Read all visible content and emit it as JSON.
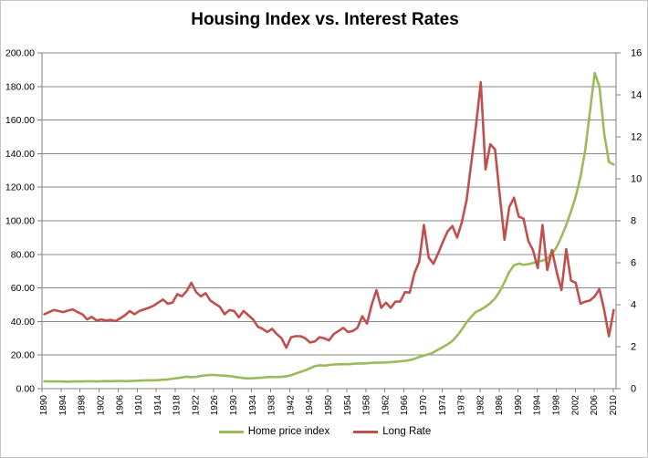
{
  "chart_data": {
    "type": "line",
    "title": "Housing Index vs. Interest Rates",
    "x_start": 1890,
    "x_end": 2010,
    "x_tick_interval": 4,
    "x_tick_labels": [
      "1890",
      "1894",
      "1898",
      "1902",
      "1906",
      "1910",
      "1914",
      "1918",
      "1922",
      "1926",
      "1930",
      "1934",
      "1938",
      "1942",
      "1946",
      "1950",
      "1954",
      "1958",
      "1962",
      "1966",
      "1970",
      "1974",
      "1978",
      "1982",
      "1986",
      "1990",
      "1994",
      "1998",
      "2002",
      "2006",
      "2010"
    ],
    "left_axis": {
      "min": 0,
      "max": 200,
      "step": 20,
      "labels": [
        "0.00",
        "20.00",
        "40.00",
        "60.00",
        "80.00",
        "100.00",
        "120.00",
        "140.00",
        "160.00",
        "180.00",
        "200.00"
      ]
    },
    "right_axis": {
      "min": 0,
      "max": 16,
      "step": 2,
      "labels": [
        "0",
        "2",
        "4",
        "6",
        "8",
        "10",
        "12",
        "14",
        "16"
      ]
    },
    "grid": true,
    "legend_position": "bottom",
    "series": [
      {
        "name": "Home price index",
        "axis": "left",
        "color": "#9BBB59",
        "values": [
          4.4,
          4.35,
          4.3,
          4.35,
          4.25,
          4.2,
          4.3,
          4.35,
          4.3,
          4.4,
          4.4,
          4.3,
          4.4,
          4.5,
          4.45,
          4.5,
          4.6,
          4.5,
          4.55,
          4.7,
          4.8,
          4.9,
          5.0,
          5.0,
          5.1,
          5.3,
          5.5,
          5.9,
          6.3,
          6.7,
          7.1,
          6.9,
          7.0,
          7.6,
          7.9,
          8.2,
          8.1,
          7.9,
          7.7,
          7.5,
          7.1,
          6.7,
          6.3,
          6.1,
          6.2,
          6.4,
          6.6,
          6.9,
          7.0,
          6.9,
          7.0,
          7.4,
          8.0,
          9.0,
          10.0,
          10.9,
          12.1,
          13.4,
          13.9,
          13.7,
          14.1,
          14.4,
          14.5,
          14.6,
          14.5,
          14.8,
          15.0,
          15.0,
          15.1,
          15.4,
          15.5,
          15.5,
          15.6,
          15.8,
          16.0,
          16.3,
          16.6,
          17.0,
          17.8,
          18.8,
          19.7,
          20.5,
          21.6,
          23.2,
          24.8,
          26.4,
          28.5,
          31.5,
          35.3,
          39.5,
          43.0,
          45.8,
          47.0,
          48.8,
          51.0,
          53.8,
          58.0,
          63.5,
          69.5,
          73.5,
          74.5,
          73.8,
          74.2,
          74.8,
          75.8,
          76.2,
          77.5,
          80.0,
          84.5,
          90.5,
          97.5,
          105.5,
          114.5,
          126.0,
          142.0,
          165.0,
          188.0,
          180.0,
          152.0,
          135.0,
          133.5
        ]
      },
      {
        "name": "Long Rate",
        "axis": "right",
        "color": "#C0504D",
        "values": [
          3.55,
          3.65,
          3.75,
          3.7,
          3.65,
          3.72,
          3.78,
          3.65,
          3.55,
          3.3,
          3.42,
          3.25,
          3.3,
          3.25,
          3.28,
          3.22,
          3.35,
          3.5,
          3.7,
          3.55,
          3.7,
          3.78,
          3.85,
          3.95,
          4.1,
          4.25,
          4.05,
          4.1,
          4.5,
          4.4,
          4.65,
          5.05,
          4.6,
          4.4,
          4.55,
          4.2,
          4.05,
          3.9,
          3.55,
          3.75,
          3.7,
          3.4,
          3.7,
          3.5,
          3.3,
          2.95,
          2.85,
          2.7,
          2.85,
          2.6,
          2.4,
          1.95,
          2.45,
          2.5,
          2.5,
          2.4,
          2.2,
          2.25,
          2.45,
          2.4,
          2.3,
          2.6,
          2.75,
          2.9,
          2.7,
          2.75,
          2.9,
          3.45,
          3.1,
          4.0,
          4.7,
          3.85,
          4.1,
          3.85,
          4.15,
          4.15,
          4.6,
          4.58,
          5.5,
          6.05,
          7.8,
          6.25,
          5.95,
          6.45,
          7.0,
          7.5,
          7.75,
          7.2,
          7.95,
          9.0,
          10.8,
          12.55,
          14.6,
          10.45,
          11.65,
          11.4,
          9.2,
          7.1,
          8.65,
          9.1,
          8.2,
          8.1,
          7.05,
          6.6,
          5.75,
          7.8,
          5.65,
          6.6,
          5.55,
          4.7,
          6.65,
          5.15,
          5.05,
          4.05,
          4.15,
          4.2,
          4.4,
          4.75,
          3.75,
          2.5,
          3.75
        ]
      }
    ],
    "style": {
      "gridline_color": "#878787",
      "axis_color": "#808080",
      "text_color": "#000000",
      "background": "#FFFFFF"
    }
  },
  "legend": {
    "items": [
      {
        "label": "Home price index"
      },
      {
        "label": "Long Rate"
      }
    ]
  }
}
